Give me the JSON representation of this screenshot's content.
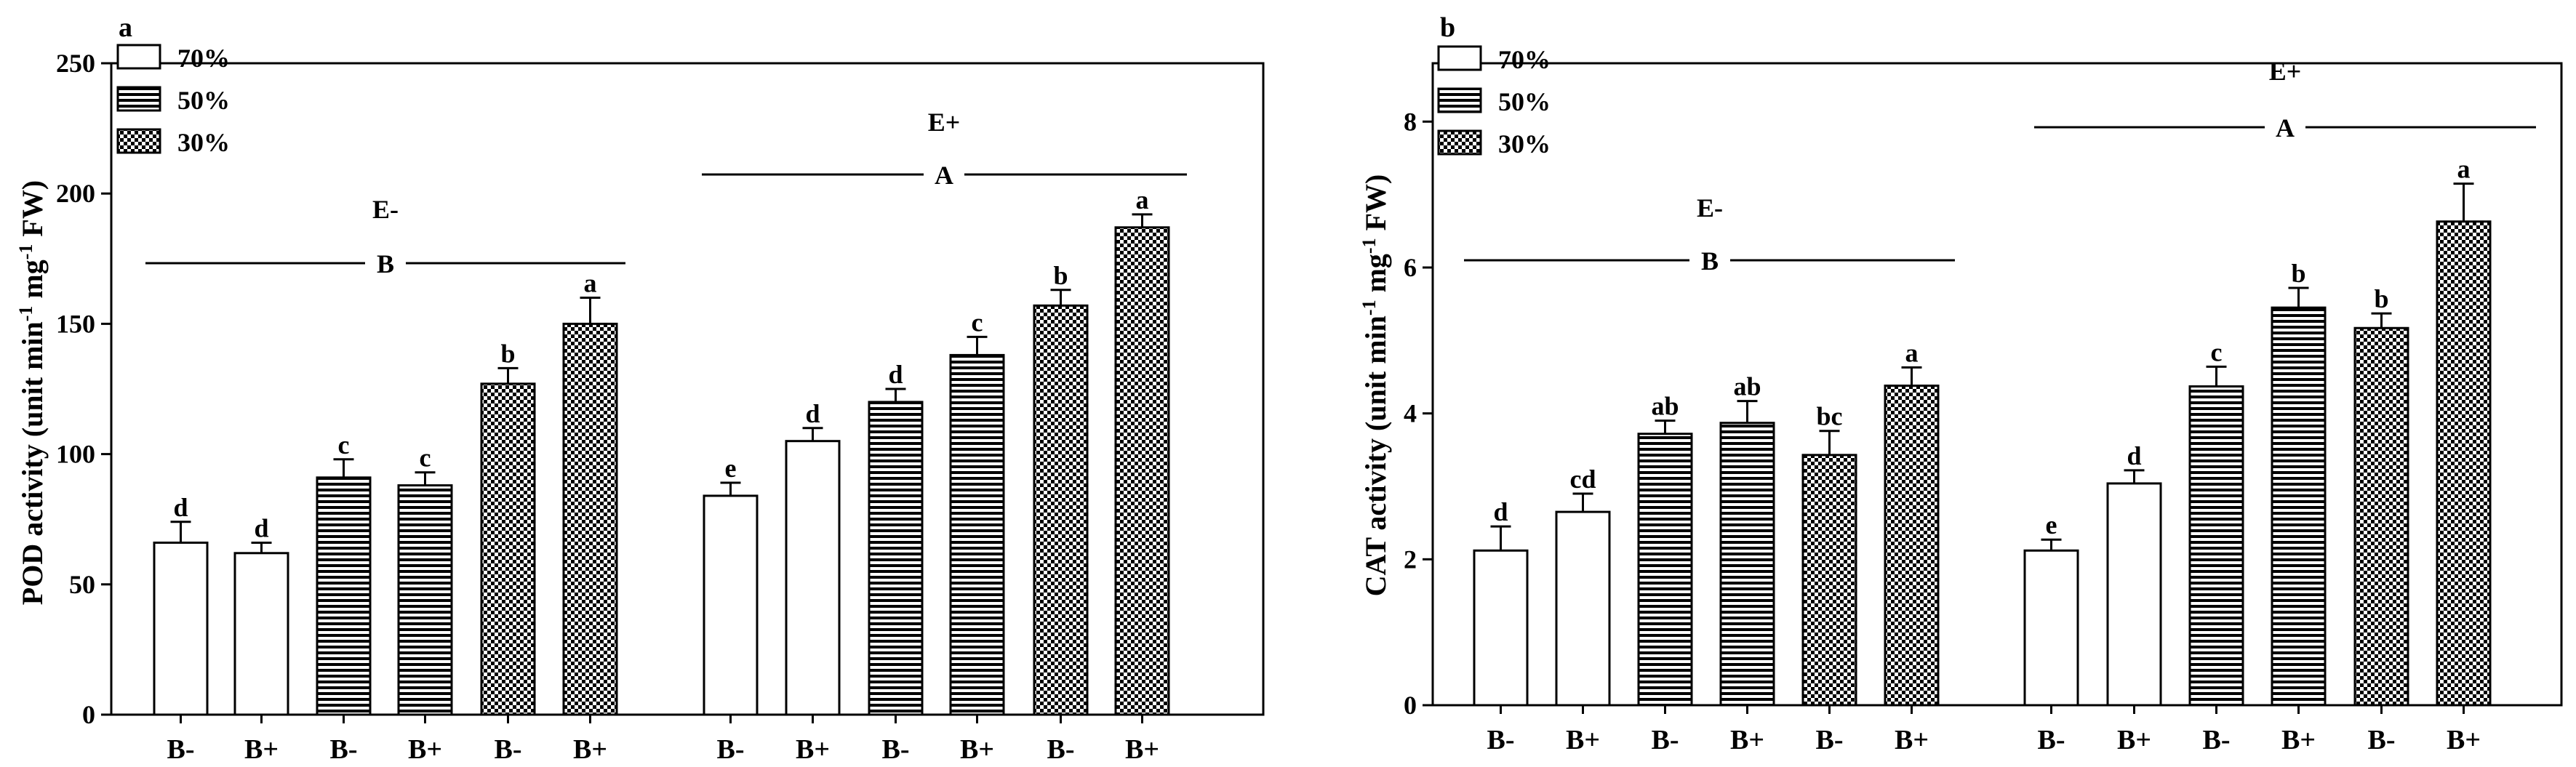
{
  "chart_data": [
    {
      "type": "bar",
      "panel_label": "a",
      "ylabel": "POD activity (unit min-1 mg-1 FW)",
      "ylabel_parts": [
        "POD activity (unit min",
        "-1",
        " mg",
        "-1",
        " FW)"
      ],
      "ylim": [
        0,
        250
      ],
      "yticks": [
        0,
        50,
        100,
        150,
        200,
        250
      ],
      "grid": false,
      "legend": {
        "placement": "top-left",
        "entries": [
          "70%",
          "50%",
          "30%"
        ]
      },
      "categories": [
        "B-",
        "B+",
        "B-",
        "B+",
        "B-",
        "B+",
        "B-",
        "B+",
        "B-",
        "B+",
        "B-",
        "B+"
      ],
      "groups": [
        {
          "label": "E-",
          "letter": "B"
        },
        {
          "label": "E+",
          "letter": "A"
        }
      ],
      "bars": [
        {
          "x": "B-",
          "group": "E-",
          "series": "70%",
          "value": 66,
          "error": 8,
          "letter": "d"
        },
        {
          "x": "B+",
          "group": "E-",
          "series": "70%",
          "value": 62,
          "error": 4,
          "letter": "d"
        },
        {
          "x": "B-",
          "group": "E-",
          "series": "50%",
          "value": 91,
          "error": 7,
          "letter": "c"
        },
        {
          "x": "B+",
          "group": "E-",
          "series": "50%",
          "value": 88,
          "error": 5,
          "letter": "c"
        },
        {
          "x": "B-",
          "group": "E-",
          "series": "30%",
          "value": 127,
          "error": 6,
          "letter": "b"
        },
        {
          "x": "B+",
          "group": "E-",
          "series": "30%",
          "value": 150,
          "error": 10,
          "letter": "a"
        },
        {
          "x": "B-",
          "group": "E+",
          "series": "70%",
          "value": 84,
          "error": 5,
          "letter": "e"
        },
        {
          "x": "B+",
          "group": "E+",
          "series": "70%",
          "value": 105,
          "error": 5,
          "letter": "d"
        },
        {
          "x": "B-",
          "group": "E+",
          "series": "50%",
          "value": 120,
          "error": 5,
          "letter": "d"
        },
        {
          "x": "B+",
          "group": "E+",
          "series": "50%",
          "value": 138,
          "error": 7,
          "letter": "c"
        },
        {
          "x": "B-",
          "group": "E+",
          "series": "30%",
          "value": 157,
          "error": 6,
          "letter": "b"
        },
        {
          "x": "B+",
          "group": "E+",
          "series": "30%",
          "value": 187,
          "error": 5,
          "letter": "a"
        }
      ]
    },
    {
      "type": "bar",
      "panel_label": "b",
      "ylabel": "CAT activity (unit min-1 mg-1 FW)",
      "ylabel_parts": [
        "CAT activity (unit min",
        "-1",
        " mg",
        "-1",
        " FW)"
      ],
      "ylim": [
        0,
        8.8
      ],
      "yticks": [
        0,
        2,
        4,
        6,
        8
      ],
      "grid": false,
      "legend": {
        "placement": "top-left",
        "entries": [
          "70%",
          "50%",
          "30%"
        ]
      },
      "categories": [
        "B-",
        "B+",
        "B-",
        "B+",
        "B-",
        "B+",
        "B-",
        "B+",
        "B-",
        "B+",
        "B-",
        "B+"
      ],
      "groups": [
        {
          "label": "E-",
          "letter": "B"
        },
        {
          "label": "E+",
          "letter": "A"
        }
      ],
      "bars": [
        {
          "x": "B-",
          "group": "E-",
          "series": "70%",
          "value": 2.12,
          "error": 0.33,
          "letter": "d"
        },
        {
          "x": "B+",
          "group": "E-",
          "series": "70%",
          "value": 2.65,
          "error": 0.25,
          "letter": "cd"
        },
        {
          "x": "B-",
          "group": "E-",
          "series": "50%",
          "value": 3.72,
          "error": 0.18,
          "letter": "ab"
        },
        {
          "x": "B+",
          "group": "E-",
          "series": "50%",
          "value": 3.87,
          "error": 0.3,
          "letter": "ab"
        },
        {
          "x": "B-",
          "group": "E-",
          "series": "30%",
          "value": 3.43,
          "error": 0.33,
          "letter": "bc"
        },
        {
          "x": "B+",
          "group": "E-",
          "series": "30%",
          "value": 4.38,
          "error": 0.25,
          "letter": "a"
        },
        {
          "x": "B-",
          "group": "E+",
          "series": "70%",
          "value": 2.12,
          "error": 0.15,
          "letter": "e"
        },
        {
          "x": "B+",
          "group": "E+",
          "series": "70%",
          "value": 3.04,
          "error": 0.18,
          "letter": "d"
        },
        {
          "x": "B-",
          "group": "E+",
          "series": "50%",
          "value": 4.37,
          "error": 0.27,
          "letter": "c"
        },
        {
          "x": "B+",
          "group": "E+",
          "series": "50%",
          "value": 5.45,
          "error": 0.27,
          "letter": "b"
        },
        {
          "x": "B-",
          "group": "E+",
          "series": "30%",
          "value": 5.17,
          "error": 0.2,
          "letter": "b"
        },
        {
          "x": "B+",
          "group": "E+",
          "series": "30%",
          "value": 6.63,
          "error": 0.52,
          "letter": "a"
        }
      ]
    }
  ]
}
